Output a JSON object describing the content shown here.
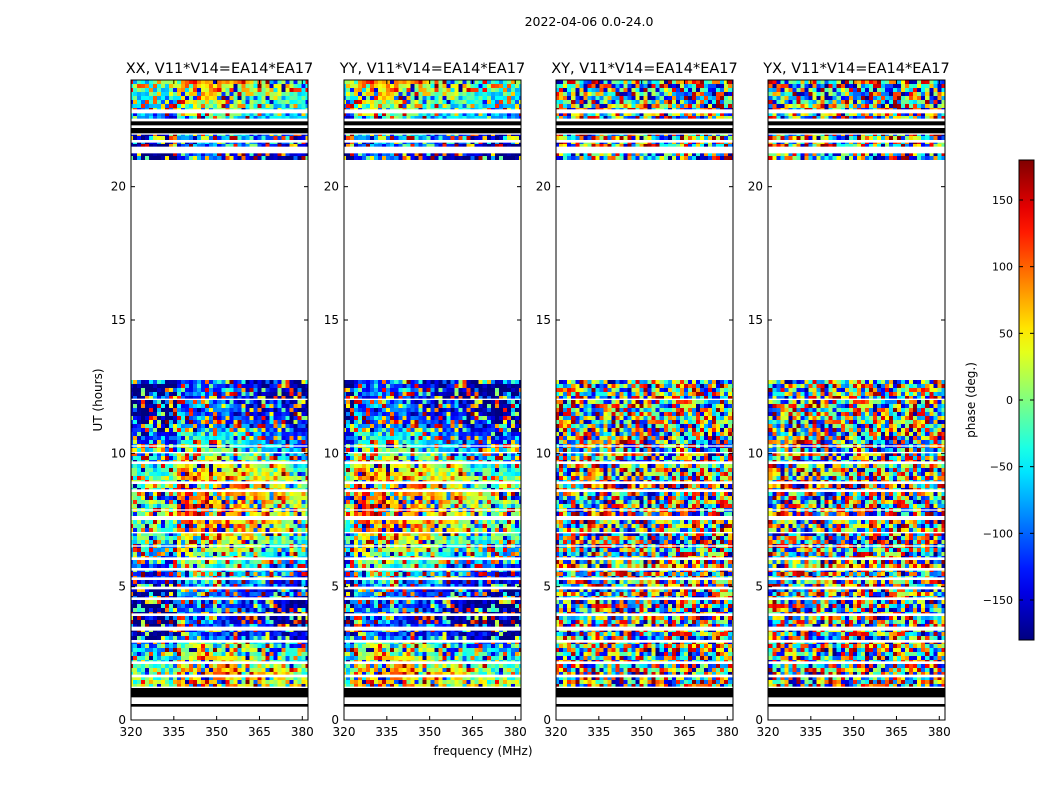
{
  "figure": {
    "suptitle": "2022-04-06 0.0-24.0",
    "ylabel": "UT (hours)",
    "xlabel": "frequency (MHz)"
  },
  "chart_data": {
    "type": "heatmap",
    "x_range_mhz": [
      320,
      382
    ],
    "y_range_hours": [
      0,
      24
    ],
    "x_ticks": [
      320,
      335,
      350,
      365,
      380
    ],
    "y_ticks": [
      0,
      5,
      10,
      15,
      20
    ],
    "panels": [
      {
        "title": "XX, V11*V14=EA14*EA17",
        "pol": "XX"
      },
      {
        "title": "YY, V11*V14=EA14*EA17",
        "pol": "YY"
      },
      {
        "title": "XY, V11*V14=EA14*EA17",
        "pol": "XY"
      },
      {
        "title": "YX, V11*V14=EA14*EA17",
        "pol": "YX"
      }
    ],
    "data_bands_hours": [
      [
        1.25,
        1.6
      ],
      [
        1.7,
        2.1
      ],
      [
        2.2,
        2.9
      ],
      [
        3.0,
        3.35
      ],
      [
        3.5,
        3.9
      ],
      [
        4.0,
        4.5
      ],
      [
        4.6,
        4.9
      ],
      [
        5.0,
        5.25
      ],
      [
        5.35,
        5.6
      ],
      [
        5.7,
        6.0
      ],
      [
        6.1,
        6.5
      ],
      [
        6.55,
        7.0
      ],
      [
        7.05,
        7.5
      ],
      [
        7.65,
        7.85
      ],
      [
        7.9,
        8.55
      ],
      [
        8.65,
        8.85
      ],
      [
        8.95,
        9.6
      ],
      [
        9.7,
        10.0
      ],
      [
        10.05,
        10.25
      ],
      [
        10.3,
        12.0
      ],
      [
        12.05,
        12.75
      ],
      [
        21.0,
        21.25
      ],
      [
        21.5,
        21.65
      ],
      [
        21.75,
        21.95
      ],
      [
        22.55,
        22.75
      ],
      [
        22.9,
        24.0
      ]
    ],
    "flagged_black_bands_hours": [
      [
        0.5,
        0.6
      ],
      [
        0.85,
        1.2
      ],
      [
        22.0,
        22.2
      ],
      [
        22.3,
        22.45
      ]
    ],
    "colorbar": {
      "label": "phase (deg.)",
      "range": [
        -180,
        180
      ],
      "ticks": [
        -150,
        -100,
        -50,
        0,
        50,
        100,
        150
      ],
      "colormap": "jet"
    },
    "colors": {
      "axes": "#000000",
      "background": "#ffffff",
      "flag": "#000000"
    }
  }
}
